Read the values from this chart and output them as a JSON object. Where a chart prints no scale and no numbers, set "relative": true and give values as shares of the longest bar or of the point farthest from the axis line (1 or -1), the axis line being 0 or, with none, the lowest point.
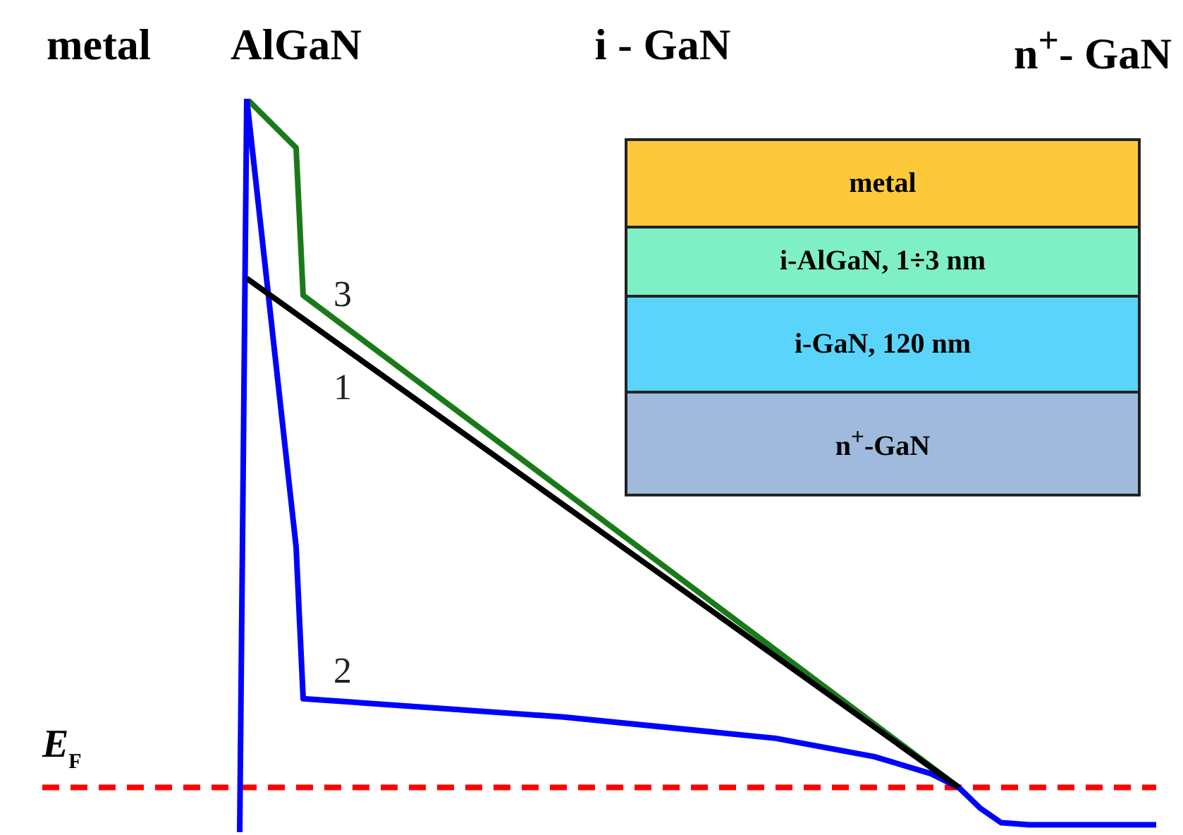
{
  "chart_data": {
    "type": "line",
    "relative": true,
    "categories": [
      null,
      null,
      null,
      null,
      null,
      null,
      null,
      null,
      null,
      null,
      null,
      null,
      null,
      null,
      null,
      null,
      null,
      null,
      null,
      null,
      null,
      null,
      null,
      null,
      null,
      null,
      null,
      null,
      null,
      null,
      null,
      null,
      null,
      null,
      null,
      null,
      null,
      null,
      null,
      null,
      null,
      null,
      null,
      null,
      null,
      null,
      null,
      null,
      null,
      null,
      null,
      null,
      null,
      null,
      null,
      null,
      null,
      null,
      null,
      null,
      null,
      null,
      null,
      null,
      null,
      null,
      null,
      null,
      null,
      null,
      null,
      null,
      null,
      null,
      null,
      null,
      null,
      null,
      null,
      null,
      null,
      null,
      null,
      null,
      null,
      null,
      null,
      null,
      null,
      null,
      null,
      null,
      null,
      null,
      null,
      null,
      null,
      null,
      null,
      null,
      null,
      null,
      null,
      null,
      null,
      null,
      null,
      null,
      null,
      null,
      null,
      null,
      null,
      null,
      null,
      null,
      null,
      null,
      null,
      null,
      null,
      null,
      null,
      null,
      null,
      null,
      null,
      null,
      null,
      null,
      null,
      null,
      null,
      null,
      null,
      null,
      null,
      null,
      null,
      null,
      null,
      null,
      null,
      null,
      null,
      null,
      null,
      null,
      null,
      null,
      null,
      null,
      null,
      null,
      null,
      null,
      null,
      null,
      null
    ],
    "series": [
      {
        "name": "1",
        "color": "#000000",
        "values": [
          null,
          null,
          null,
          null,
          null,
          null,
          null,
          null,
          null,
          null,
          null,
          null,
          null,
          null,
          null,
          null,
          null,
          null,
          null,
          null,
          null,
          null,
          null,
          null,
          null,
          null,
          null,
          null,
          null,
          0.755,
          null,
          null,
          null,
          null,
          null,
          null,
          null,
          null,
          null,
          null,
          null,
          null,
          null,
          null,
          null,
          null,
          null,
          null,
          null,
          null,
          null,
          null,
          null,
          null,
          null,
          null,
          null,
          null,
          null,
          null,
          null,
          null,
          null,
          null,
          null,
          null,
          null,
          null,
          null,
          null,
          null,
          null,
          null,
          null,
          null,
          null,
          null,
          null,
          null,
          null,
          null,
          null,
          null,
          null,
          null,
          null,
          null,
          null,
          null,
          null,
          null,
          null,
          null,
          null,
          null,
          null,
          null,
          null,
          null,
          null,
          null,
          null,
          null,
          null,
          null,
          null,
          null,
          null,
          null,
          null,
          null,
          null,
          null,
          null,
          null,
          null,
          null,
          null,
          null,
          null,
          null,
          null,
          null,
          null,
          null,
          null,
          null,
          null,
          null,
          null,
          0.061,
          null,
          null,
          null,
          null,
          null,
          null,
          null,
          null,
          null,
          null,
          null,
          null,
          null,
          null,
          null,
          null,
          null,
          null,
          null,
          null,
          null,
          null,
          null,
          null,
          null,
          null,
          null,
          null
        ]
      },
      {
        "name": "2",
        "color": "#0000ff",
        "values": [
          null,
          null,
          null,
          null,
          null,
          null,
          null,
          null,
          null,
          null,
          null,
          null,
          null,
          null,
          null,
          null,
          null,
          null,
          null,
          null,
          null,
          null,
          null,
          null,
          null,
          null,
          null,
          null,
          0,
          1,
          null,
          null,
          null,
          null,
          null,
          null,
          0.389,
          0.182,
          null,
          null,
          null,
          null,
          null,
          null,
          null,
          null,
          null,
          null,
          null,
          null,
          null,
          null,
          null,
          null,
          null,
          null,
          null,
          null,
          null,
          null,
          null,
          null,
          null,
          null,
          null,
          null,
          null,
          null,
          null,
          null,
          null,
          null,
          null,
          null,
          0.157,
          null,
          null,
          null,
          null,
          null,
          null,
          null,
          null,
          null,
          null,
          null,
          null,
          null,
          null,
          null,
          null,
          null,
          null,
          null,
          null,
          null,
          null,
          null,
          null,
          null,
          null,
          null,
          null,
          null,
          0.128,
          null,
          null,
          null,
          null,
          null,
          null,
          null,
          null,
          null,
          null,
          null,
          null,
          null,
          0.103,
          null,
          null,
          null,
          null,
          null,
          null,
          null,
          0.08,
          null,
          null,
          null,
          0.061,
          null,
          null,
          0.033,
          null,
          null,
          0.013,
          null,
          null,
          null,
          0.01,
          null,
          null,
          null,
          null,
          null,
          null,
          null,
          null,
          null,
          null,
          null,
          null,
          null,
          null,
          null,
          null,
          null,
          0.01
        ]
      },
      {
        "name": "3",
        "color": "#1a7a1a",
        "values": [
          null,
          null,
          null,
          null,
          null,
          null,
          null,
          null,
          null,
          null,
          null,
          null,
          null,
          null,
          null,
          null,
          null,
          null,
          null,
          null,
          null,
          null,
          null,
          null,
          null,
          null,
          null,
          null,
          null,
          1,
          null,
          null,
          null,
          null,
          null,
          null,
          0.933,
          0.732,
          null,
          null,
          null,
          null,
          null,
          null,
          null,
          null,
          null,
          null,
          null,
          null,
          null,
          null,
          null,
          null,
          null,
          null,
          null,
          null,
          null,
          null,
          null,
          null,
          null,
          null,
          null,
          null,
          null,
          null,
          null,
          null,
          null,
          null,
          null,
          null,
          null,
          null,
          null,
          null,
          null,
          null,
          null,
          null,
          null,
          null,
          null,
          null,
          null,
          null,
          null,
          null,
          null,
          null,
          null,
          null,
          null,
          null,
          null,
          null,
          null,
          null,
          null,
          null,
          null,
          null,
          null,
          null,
          null,
          null,
          null,
          null,
          null,
          null,
          null,
          null,
          null,
          null,
          null,
          null,
          null,
          null,
          null,
          null,
          null,
          null,
          null,
          null,
          null,
          null,
          null,
          null,
          0.061,
          null,
          null,
          null,
          null,
          null,
          null,
          null,
          null,
          null,
          null,
          null,
          null,
          null,
          null,
          null,
          null,
          null,
          null,
          null,
          null,
          null,
          null,
          null,
          null,
          null,
          null,
          null,
          null
        ]
      }
    ],
    "ref_lines": [
      {
        "axis": "y",
        "value": 0.061,
        "label": "E$_{F}$",
        "color": "#ff0000",
        "line_style": "dashed"
      }
    ],
    "annotations": [
      "metal",
      "AlGaN",
      "i - GaN",
      "n$^{+}$- GaN",
      "metal",
      "i-AlGaN, 1÷3 nm",
      "i-GaN, 120 nm",
      "n$^{+}$-GaN"
    ]
  }
}
